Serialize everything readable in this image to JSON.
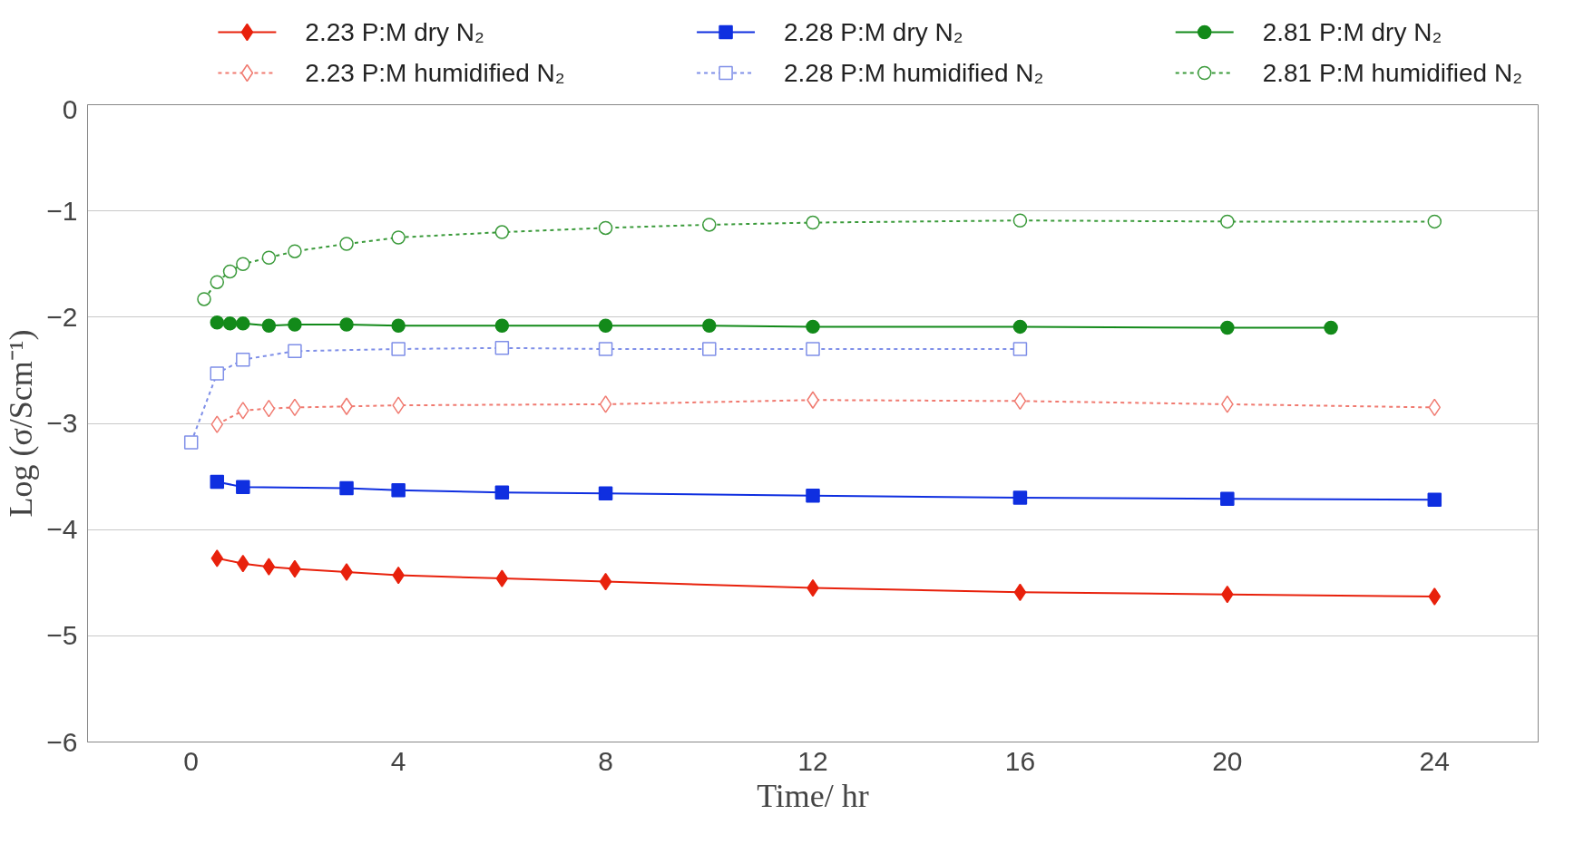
{
  "chart_data": {
    "type": "line",
    "xlabel": "Time/ hr",
    "ylabel": "Log (σ/Scm⁻¹)",
    "xlim": [
      -2,
      26
    ],
    "ylim": [
      -6,
      0
    ],
    "xticks": [
      0,
      4,
      8,
      12,
      16,
      20,
      24
    ],
    "yticks": [
      -6,
      -5,
      -4,
      -3,
      -2,
      -1,
      0
    ],
    "grid": "y",
    "legend": "top",
    "series": [
      {
        "name": "2.23 P:M dry N₂",
        "color": "#e8210c",
        "marker": "diamond",
        "line_style": "solid",
        "x": [
          0.5,
          1,
          1.5,
          2,
          3,
          4,
          6,
          8,
          12,
          16,
          20,
          24
        ],
        "values": [
          -4.27,
          -4.32,
          -4.35,
          -4.37,
          -4.4,
          -4.43,
          -4.46,
          -4.49,
          -4.55,
          -4.59,
          -4.61,
          -4.63
        ]
      },
      {
        "name": "2.23 P:M humidified N₂",
        "color": "#f07a70",
        "marker": "diamond",
        "line_style": "dashed",
        "x": [
          0.5,
          1,
          1.5,
          2,
          3,
          4,
          8,
          12,
          16,
          20,
          24
        ],
        "values": [
          -3.01,
          -2.88,
          -2.86,
          -2.85,
          -2.84,
          -2.83,
          -2.82,
          -2.78,
          -2.79,
          -2.82,
          -2.85
        ]
      },
      {
        "name": "2.28 P:M dry N₂",
        "color": "#0f2fe0",
        "marker": "square",
        "line_style": "solid",
        "x": [
          0.5,
          1,
          3,
          4,
          6,
          8,
          12,
          16,
          20,
          24
        ],
        "values": [
          -3.55,
          -3.6,
          -3.61,
          -3.63,
          -3.65,
          -3.66,
          -3.68,
          -3.7,
          -3.71,
          -3.72
        ]
      },
      {
        "name": "2.28 P:M humidified N₂",
        "color": "#7f8fe8",
        "marker": "square",
        "line_style": "dashed",
        "x": [
          0,
          0.5,
          1,
          2,
          4,
          6,
          8,
          10,
          12,
          16
        ],
        "values": [
          -3.18,
          -2.53,
          -2.4,
          -2.32,
          -2.3,
          -2.29,
          -2.3,
          -2.3,
          -2.3,
          -2.3
        ]
      },
      {
        "name": "2.81 P:M dry N₂",
        "color": "#138a1a",
        "marker": "circle",
        "line_style": "solid",
        "x": [
          0.5,
          0.75,
          1,
          1.5,
          2,
          3,
          4,
          6,
          8,
          10,
          12,
          16,
          20,
          22
        ],
        "values": [
          -2.05,
          -2.06,
          -2.06,
          -2.08,
          -2.07,
          -2.07,
          -2.08,
          -2.08,
          -2.08,
          -2.08,
          -2.09,
          -2.09,
          -2.1,
          -2.1
        ]
      },
      {
        "name": "2.81 P:M humidified N₂",
        "color": "#3a9a3a",
        "marker": "circle",
        "line_style": "dashed",
        "x": [
          0.25,
          0.5,
          0.75,
          1,
          1.5,
          2,
          3,
          4,
          6,
          8,
          10,
          12,
          16,
          20,
          24
        ],
        "values": [
          -1.83,
          -1.67,
          -1.57,
          -1.5,
          -1.44,
          -1.38,
          -1.31,
          -1.25,
          -1.2,
          -1.16,
          -1.13,
          -1.11,
          -1.09,
          -1.1,
          -1.1
        ]
      }
    ]
  }
}
